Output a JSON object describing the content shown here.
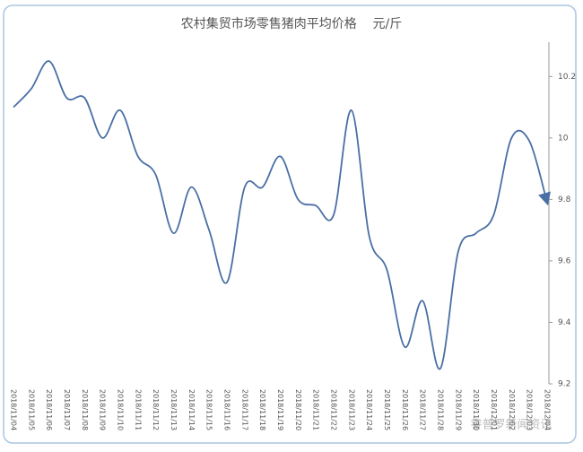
{
  "chart_data": {
    "type": "line",
    "title": "农村集贸市场零售猪肉平均价格    元/斤",
    "categories": [
      "2018/11/04",
      "2018/11/05",
      "2018/11/06",
      "2018/11/07",
      "2018/11/08",
      "2018/11/09",
      "2018/11/10",
      "2018/11/11",
      "2018/11/12",
      "2018/11/13",
      "2018/11/14",
      "2018/11/15",
      "2018/11/16",
      "2018/11/17",
      "2018/11/18",
      "2018/11/19",
      "2018/11/20",
      "2018/11/21",
      "2018/11/22",
      "2018/11/23",
      "2018/11/24",
      "2018/11/25",
      "2018/11/26",
      "2018/11/27",
      "2018/11/28",
      "2018/11/29",
      "2018/11/30",
      "2018/12/01",
      "2018/12/02",
      "2018/12/03",
      "2018/12/04"
    ],
    "values": [
      10.1,
      10.16,
      10.25,
      10.13,
      10.13,
      10.0,
      10.09,
      9.94,
      9.88,
      9.69,
      9.84,
      9.7,
      9.53,
      9.84,
      9.84,
      9.94,
      9.8,
      9.78,
      9.75,
      10.09,
      9.68,
      9.57,
      9.32,
      9.47,
      9.25,
      9.63,
      9.69,
      9.75,
      10.0,
      9.99,
      9.79
    ],
    "color": "#4a6fa5",
    "ylim": [
      9.2,
      10.3
    ],
    "yticks": [
      9.2,
      9.4,
      9.6,
      9.8,
      10,
      10.2
    ],
    "watermark": "睿普罗新闻资讯"
  }
}
